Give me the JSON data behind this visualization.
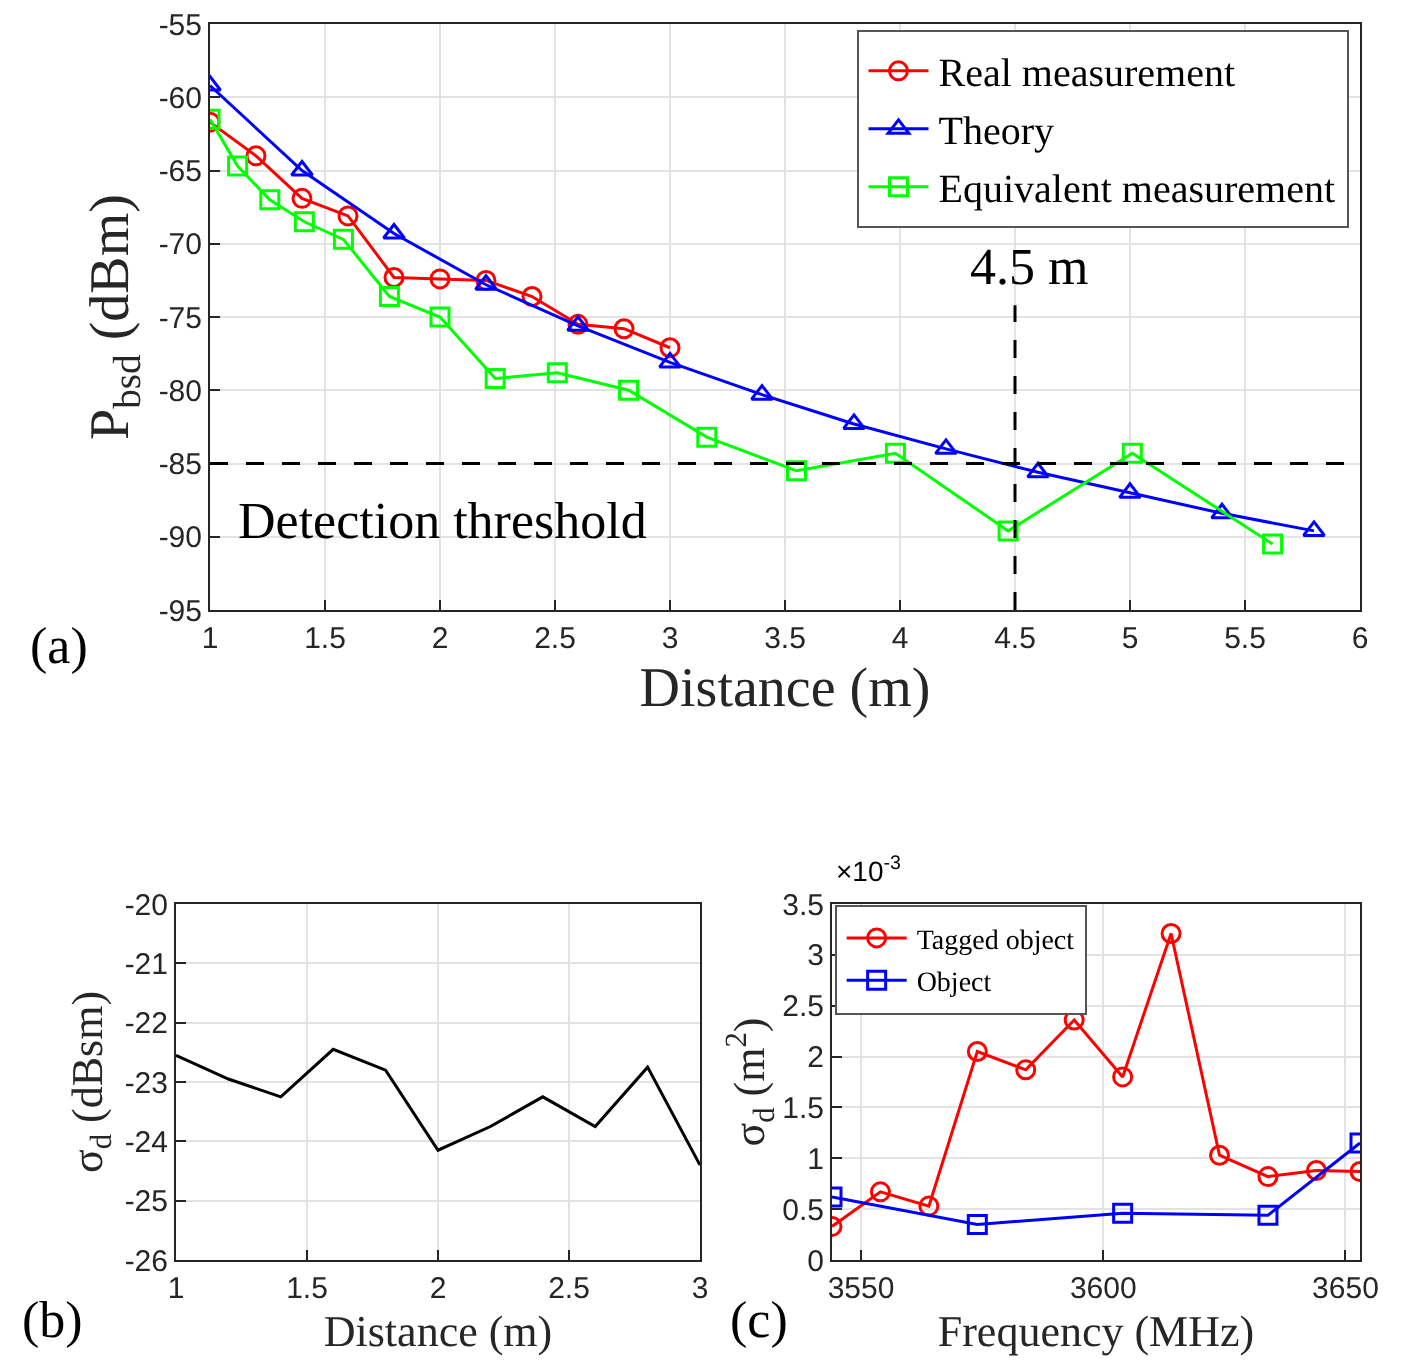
{
  "chart_data": [
    {
      "type": "line",
      "xlabel": "Distance (m)",
      "ylabel": "P$_{bsd}$ (dBm)",
      "xlim": [
        1,
        6
      ],
      "xticks": [
        1,
        1.5,
        2,
        2.5,
        3,
        3.5,
        4,
        4.5,
        5,
        5.5,
        6
      ],
      "ylim": [
        -95,
        -55
      ],
      "yticks": [
        -95,
        -90,
        -85,
        -80,
        -75,
        -70,
        -65,
        -60,
        -55
      ],
      "grid": true,
      "legend": "top right",
      "series": [
        {
          "name": "Real measurement",
          "color": "#ff0000",
          "marker": "circle",
          "x": [
            1,
            1.2,
            1.4,
            1.6,
            1.8,
            2,
            2.2,
            2.4,
            2.6,
            2.8,
            3
          ],
          "values": [
            -61.7,
            -64,
            -66.9,
            -68.1,
            -72.3,
            -72.4,
            -72.5,
            -73.6,
            -75.5,
            -75.8,
            -77.1
          ]
        },
        {
          "name": "Theory",
          "color": "#0000ff",
          "marker": "triangle",
          "x": [
            1,
            1.4,
            1.8,
            2.2,
            2.6,
            3,
            3.4,
            3.8,
            4.2,
            4.6,
            5,
            5.4,
            5.8
          ],
          "values": [
            -59.2,
            -65,
            -69.3,
            -72.8,
            -75.6,
            -78.1,
            -80.3,
            -82.3,
            -84,
            -85.6,
            -87,
            -88.4,
            -89.6
          ]
        },
        {
          "name": "Equivalent measurement",
          "color": "#00ff00",
          "marker": "square",
          "x": [
            1,
            1.12,
            1.26,
            1.41,
            1.58,
            1.78,
            2,
            2.24,
            2.51,
            2.82,
            3.16,
            3.55,
            3.98,
            4.47,
            5.01,
            5.62
          ],
          "values": [
            -61.5,
            -64.7,
            -67,
            -68.5,
            -69.7,
            -73.6,
            -75,
            -79.2,
            -78.8,
            -80,
            -83.2,
            -85.5,
            -84.3,
            -89.6,
            -84.3,
            -90.5
          ]
        }
      ],
      "ref_lines": [
        {
          "axis": "y",
          "value": -85,
          "label": "Detection threshold",
          "line_style": "dashed",
          "color": "#000000"
        },
        {
          "axis": "x",
          "value": 4.5,
          "label": "4.5 m",
          "line_style": "dashed",
          "color": "#000000"
        }
      ],
      "annotations": [
        "(a)"
      ]
    },
    {
      "type": "line",
      "xlabel": "Distance (m)",
      "ylabel": "σ$_{d}$ (dBsm)",
      "xlim": [
        1,
        3
      ],
      "xticks": [
        1,
        1.5,
        2,
        2.5,
        3
      ],
      "ylim": [
        -26,
        -20
      ],
      "yticks": [
        -26,
        -25,
        -24,
        -23,
        -22,
        -21,
        -20
      ],
      "grid": true,
      "legend": false,
      "marker": "none",
      "series": [
        {
          "color": "#000000",
          "x": [
            1,
            1.2,
            1.4,
            1.6,
            1.8,
            2,
            2.2,
            2.4,
            2.6,
            2.8,
            3
          ],
          "values": [
            -22.55,
            -22.95,
            -23.25,
            -22.45,
            -22.8,
            -24.15,
            -23.75,
            -23.25,
            -23.75,
            -22.75,
            -24.4
          ]
        }
      ],
      "annotations": [
        "(b)"
      ]
    },
    {
      "type": "line",
      "xlabel": "Frequency (MHz)",
      "ylabel": "σ$_{d}$ (m$^{2}$)",
      "xlim": [
        3544,
        3653
      ],
      "xticks": [
        3550,
        3600,
        3650
      ],
      "ylim": [
        0,
        3.5
      ],
      "yticks": [
        0,
        0.5,
        1,
        1.5,
        2,
        2.5,
        3,
        3.5
      ],
      "grid": true,
      "legend": "top left",
      "series": [
        {
          "name": "Tagged object",
          "color": "#ff0000",
          "marker": "circle",
          "x": [
            3544,
            3554,
            3564,
            3574,
            3584,
            3594,
            3604,
            3614,
            3624,
            3634,
            3644,
            3653
          ],
          "values": [
            0.33,
            0.67,
            0.53,
            2.05,
            1.87,
            2.36,
            1.8,
            3.21,
            1.03,
            0.82,
            0.88,
            0.87
          ]
        },
        {
          "name": "Object",
          "color": "#0000ff",
          "marker": "square",
          "x": [
            3544,
            3574,
            3604,
            3634,
            3653
          ],
          "values": [
            0.62,
            0.35,
            0.46,
            0.44,
            1.15
          ]
        }
      ],
      "annotations": [
        "(c)",
        "×10$^{-3}$"
      ]
    }
  ]
}
